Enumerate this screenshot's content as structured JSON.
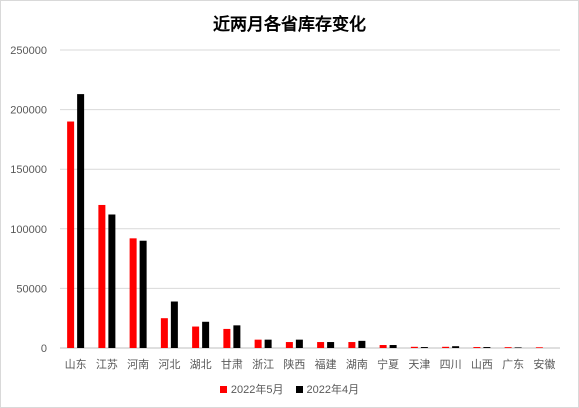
{
  "chart_data": {
    "type": "bar",
    "title": "近两月各省库存变化",
    "xlabel": "",
    "ylabel": "",
    "ylim": [
      0,
      250000
    ],
    "yticks": [
      0,
      50000,
      100000,
      150000,
      200000,
      250000
    ],
    "grid": true,
    "legend_position": "bottom",
    "categories": [
      "山东",
      "江苏",
      "河南",
      "河北",
      "湖北",
      "甘肃",
      "浙江",
      "陕西",
      "福建",
      "湖南",
      "宁夏",
      "天津",
      "四川",
      "山西",
      "广东",
      "安徽"
    ],
    "series": [
      {
        "name": "2022年5月",
        "color": "#ff0000",
        "values": [
          190000,
          120000,
          92000,
          25000,
          18000,
          16000,
          7000,
          5000,
          5000,
          5000,
          2500,
          1000,
          1000,
          800,
          700,
          600
        ]
      },
      {
        "name": "2022年4月",
        "color": "#000000",
        "values": [
          213000,
          112000,
          90000,
          39000,
          22000,
          19000,
          7000,
          7000,
          5000,
          6000,
          2500,
          800,
          1500,
          800,
          500,
          0
        ]
      }
    ]
  }
}
